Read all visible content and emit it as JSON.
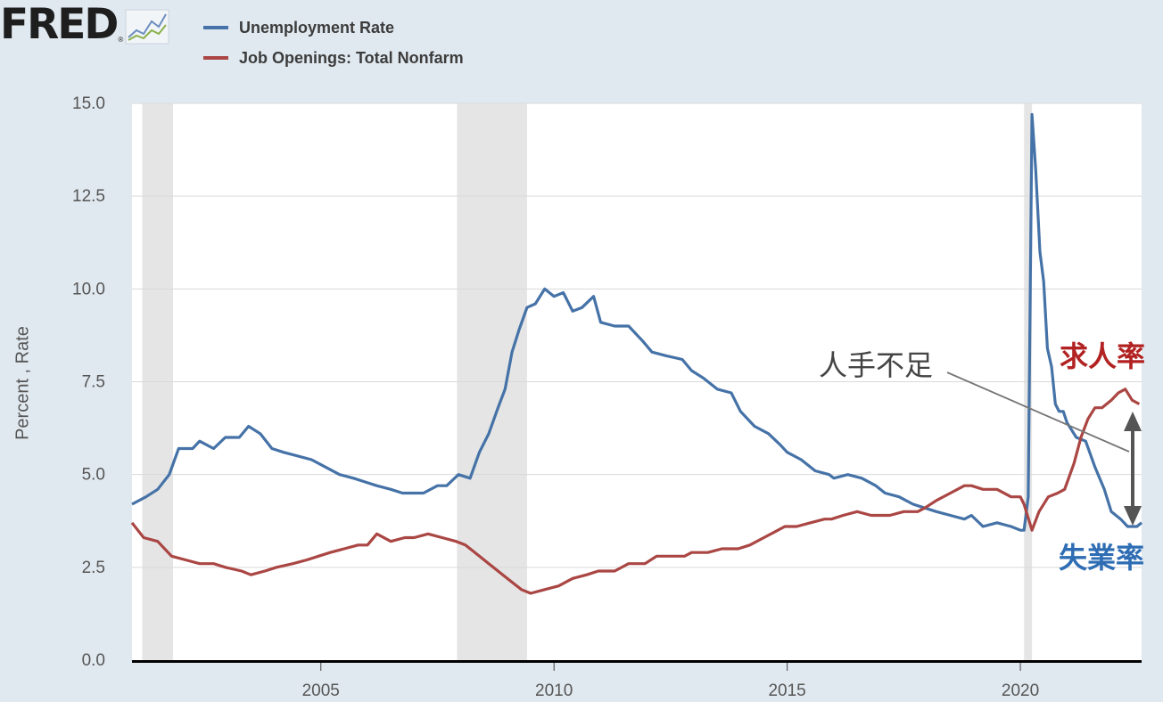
{
  "header": {
    "logo_text": "FRED",
    "logo_reg": "®"
  },
  "legend": [
    {
      "label": "Unemployment Rate",
      "color": "#4572a7"
    },
    {
      "label": "Job Openings: Total Nonfarm",
      "color": "#aa4643"
    }
  ],
  "annotations": {
    "shortage": "人手不足",
    "job_rate": "求人率",
    "unemp_rate": "失業率",
    "job_rate_color": "#b22222",
    "unemp_rate_color": "#2e6db4"
  },
  "chart_data": {
    "type": "line",
    "ylabel": "Percent , Rate",
    "ylim": [
      0,
      15
    ],
    "yticks": [
      "0.0",
      "2.5",
      "5.0",
      "7.5",
      "10.0",
      "12.5",
      "15.0"
    ],
    "xlim": [
      2000.95,
      2022.6
    ],
    "xticks": [
      "2005",
      "2010",
      "2015",
      "2020"
    ],
    "grid": true,
    "recessions": [
      [
        2001.17,
        2001.83
      ],
      [
        2007.92,
        2009.42
      ],
      [
        2020.08,
        2020.25
      ]
    ],
    "series": [
      {
        "name": "Unemployment Rate",
        "color": "#4572a7",
        "points": [
          [
            2000.95,
            4.2
          ],
          [
            2001.25,
            4.4
          ],
          [
            2001.5,
            4.6
          ],
          [
            2001.75,
            5.0
          ],
          [
            2001.95,
            5.7
          ],
          [
            2002.25,
            5.7
          ],
          [
            2002.4,
            5.9
          ],
          [
            2002.7,
            5.7
          ],
          [
            2002.95,
            6.0
          ],
          [
            2003.25,
            6.0
          ],
          [
            2003.45,
            6.3
          ],
          [
            2003.7,
            6.1
          ],
          [
            2003.95,
            5.7
          ],
          [
            2004.2,
            5.6
          ],
          [
            2004.5,
            5.5
          ],
          [
            2004.8,
            5.4
          ],
          [
            2005.1,
            5.2
          ],
          [
            2005.4,
            5.0
          ],
          [
            2005.7,
            4.9
          ],
          [
            2005.95,
            4.8
          ],
          [
            2006.2,
            4.7
          ],
          [
            2006.5,
            4.6
          ],
          [
            2006.75,
            4.5
          ],
          [
            2006.95,
            4.5
          ],
          [
            2007.2,
            4.5
          ],
          [
            2007.5,
            4.7
          ],
          [
            2007.7,
            4.7
          ],
          [
            2007.95,
            5.0
          ],
          [
            2008.2,
            4.9
          ],
          [
            2008.4,
            5.6
          ],
          [
            2008.6,
            6.1
          ],
          [
            2008.8,
            6.8
          ],
          [
            2008.95,
            7.3
          ],
          [
            2009.1,
            8.3
          ],
          [
            2009.25,
            8.9
          ],
          [
            2009.42,
            9.5
          ],
          [
            2009.6,
            9.6
          ],
          [
            2009.8,
            10.0
          ],
          [
            2010.0,
            9.8
          ],
          [
            2010.2,
            9.9
          ],
          [
            2010.4,
            9.4
          ],
          [
            2010.6,
            9.5
          ],
          [
            2010.85,
            9.8
          ],
          [
            2011.0,
            9.1
          ],
          [
            2011.3,
            9.0
          ],
          [
            2011.6,
            9.0
          ],
          [
            2011.9,
            8.6
          ],
          [
            2012.1,
            8.3
          ],
          [
            2012.4,
            8.2
          ],
          [
            2012.75,
            8.1
          ],
          [
            2012.95,
            7.8
          ],
          [
            2013.2,
            7.6
          ],
          [
            2013.5,
            7.3
          ],
          [
            2013.8,
            7.2
          ],
          [
            2014.0,
            6.7
          ],
          [
            2014.3,
            6.3
          ],
          [
            2014.6,
            6.1
          ],
          [
            2014.85,
            5.8
          ],
          [
            2015.0,
            5.6
          ],
          [
            2015.3,
            5.4
          ],
          [
            2015.6,
            5.1
          ],
          [
            2015.9,
            5.0
          ],
          [
            2016.0,
            4.9
          ],
          [
            2016.3,
            5.0
          ],
          [
            2016.6,
            4.9
          ],
          [
            2016.9,
            4.7
          ],
          [
            2017.1,
            4.5
          ],
          [
            2017.4,
            4.4
          ],
          [
            2017.7,
            4.2
          ],
          [
            2017.95,
            4.1
          ],
          [
            2018.2,
            4.0
          ],
          [
            2018.5,
            3.9
          ],
          [
            2018.8,
            3.8
          ],
          [
            2018.95,
            3.9
          ],
          [
            2019.2,
            3.6
          ],
          [
            2019.5,
            3.7
          ],
          [
            2019.8,
            3.6
          ],
          [
            2020.0,
            3.5
          ],
          [
            2020.08,
            3.5
          ],
          [
            2020.17,
            4.4
          ],
          [
            2020.25,
            14.7
          ],
          [
            2020.33,
            13.2
          ],
          [
            2020.42,
            11.0
          ],
          [
            2020.5,
            10.2
          ],
          [
            2020.58,
            8.4
          ],
          [
            2020.67,
            7.9
          ],
          [
            2020.75,
            6.9
          ],
          [
            2020.83,
            6.7
          ],
          [
            2020.92,
            6.7
          ],
          [
            2021.0,
            6.4
          ],
          [
            2021.2,
            6.0
          ],
          [
            2021.4,
            5.9
          ],
          [
            2021.6,
            5.2
          ],
          [
            2021.8,
            4.6
          ],
          [
            2021.95,
            4.0
          ],
          [
            2022.15,
            3.8
          ],
          [
            2022.3,
            3.6
          ],
          [
            2022.5,
            3.6
          ],
          [
            2022.6,
            3.7
          ]
        ]
      },
      {
        "name": "Job Openings: Total Nonfarm",
        "color": "#aa4643",
        "points": [
          [
            2000.95,
            3.7
          ],
          [
            2001.2,
            3.3
          ],
          [
            2001.5,
            3.2
          ],
          [
            2001.8,
            2.8
          ],
          [
            2002.1,
            2.7
          ],
          [
            2002.4,
            2.6
          ],
          [
            2002.7,
            2.6
          ],
          [
            2002.95,
            2.5
          ],
          [
            2003.3,
            2.4
          ],
          [
            2003.5,
            2.3
          ],
          [
            2003.8,
            2.4
          ],
          [
            2004.05,
            2.5
          ],
          [
            2004.4,
            2.6
          ],
          [
            2004.7,
            2.7
          ],
          [
            2004.95,
            2.8
          ],
          [
            2005.2,
            2.9
          ],
          [
            2005.5,
            3.0
          ],
          [
            2005.8,
            3.1
          ],
          [
            2006.0,
            3.1
          ],
          [
            2006.2,
            3.4
          ],
          [
            2006.5,
            3.2
          ],
          [
            2006.8,
            3.3
          ],
          [
            2007.0,
            3.3
          ],
          [
            2007.3,
            3.4
          ],
          [
            2007.6,
            3.3
          ],
          [
            2007.9,
            3.2
          ],
          [
            2008.1,
            3.1
          ],
          [
            2008.4,
            2.8
          ],
          [
            2008.6,
            2.6
          ],
          [
            2008.9,
            2.3
          ],
          [
            2009.1,
            2.1
          ],
          [
            2009.3,
            1.9
          ],
          [
            2009.5,
            1.8
          ],
          [
            2009.8,
            1.9
          ],
          [
            2010.1,
            2.0
          ],
          [
            2010.4,
            2.2
          ],
          [
            2010.7,
            2.3
          ],
          [
            2010.95,
            2.4
          ],
          [
            2011.3,
            2.4
          ],
          [
            2011.6,
            2.6
          ],
          [
            2011.95,
            2.6
          ],
          [
            2012.2,
            2.8
          ],
          [
            2012.5,
            2.8
          ],
          [
            2012.8,
            2.8
          ],
          [
            2012.95,
            2.9
          ],
          [
            2013.3,
            2.9
          ],
          [
            2013.6,
            3.0
          ],
          [
            2013.95,
            3.0
          ],
          [
            2014.2,
            3.1
          ],
          [
            2014.5,
            3.3
          ],
          [
            2014.8,
            3.5
          ],
          [
            2014.95,
            3.6
          ],
          [
            2015.2,
            3.6
          ],
          [
            2015.5,
            3.7
          ],
          [
            2015.8,
            3.8
          ],
          [
            2015.95,
            3.8
          ],
          [
            2016.2,
            3.9
          ],
          [
            2016.5,
            4.0
          ],
          [
            2016.8,
            3.9
          ],
          [
            2016.95,
            3.9
          ],
          [
            2017.2,
            3.9
          ],
          [
            2017.5,
            4.0
          ],
          [
            2017.8,
            4.0
          ],
          [
            2017.95,
            4.1
          ],
          [
            2018.2,
            4.3
          ],
          [
            2018.5,
            4.5
          ],
          [
            2018.8,
            4.7
          ],
          [
            2018.95,
            4.7
          ],
          [
            2019.2,
            4.6
          ],
          [
            2019.5,
            4.6
          ],
          [
            2019.8,
            4.4
          ],
          [
            2020.0,
            4.4
          ],
          [
            2020.08,
            4.2
          ],
          [
            2020.25,
            3.5
          ],
          [
            2020.4,
            4.0
          ],
          [
            2020.6,
            4.4
          ],
          [
            2020.8,
            4.5
          ],
          [
            2020.95,
            4.6
          ],
          [
            2021.15,
            5.3
          ],
          [
            2021.3,
            6.0
          ],
          [
            2021.45,
            6.5
          ],
          [
            2021.6,
            6.8
          ],
          [
            2021.75,
            6.8
          ],
          [
            2021.95,
            7.0
          ],
          [
            2022.1,
            7.2
          ],
          [
            2022.25,
            7.3
          ],
          [
            2022.4,
            7.0
          ],
          [
            2022.55,
            6.9
          ]
        ]
      }
    ]
  }
}
